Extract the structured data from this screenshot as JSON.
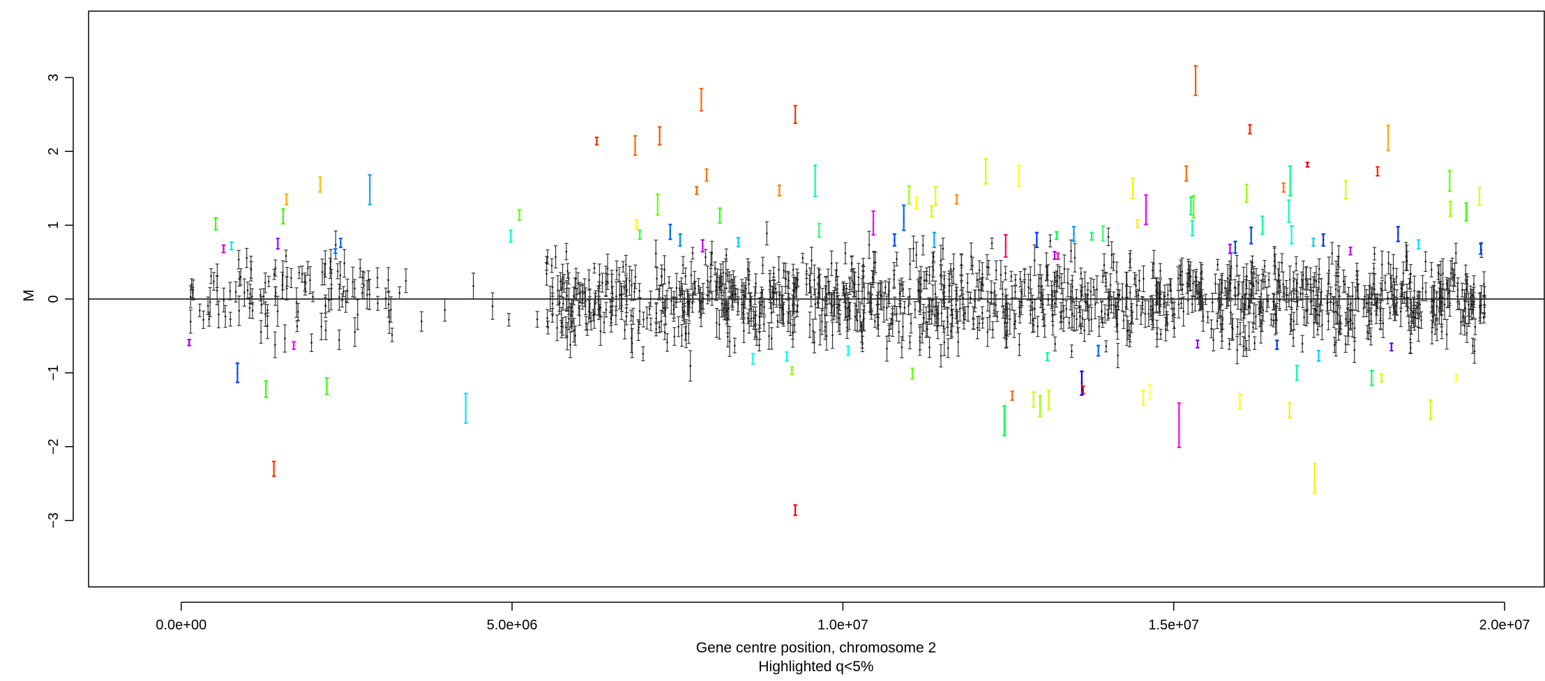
{
  "chart_data": {
    "type": "scatter",
    "title": "",
    "xlabel": "Gene centre position, chromosome 2",
    "xlabel_sub": "Highlighted q<5%",
    "ylabel": "M",
    "xlim": [
      -1400000,
      20600000
    ],
    "ylim": [
      -3.9,
      3.9
    ],
    "x_ticks": [
      0,
      5000000,
      10000000,
      15000000,
      20000000
    ],
    "x_tick_labels": [
      "0.0e+00",
      "5.0e+06",
      "1.0e+07",
      "1.5e+07",
      "2.0e+07"
    ],
    "y_ticks": [
      -3,
      -2,
      -1,
      0,
      1,
      2,
      3
    ],
    "y_tick_labels": [
      "−3",
      "−2",
      "−1",
      "0",
      "1",
      "2",
      "3"
    ],
    "reference_line_y": 0,
    "grid": false,
    "legend": "none",
    "background_points": {
      "description": "non-significant genes, estimate with error bar (black/grey)",
      "color": "#333333",
      "x_range": [
        100000,
        19700000
      ],
      "approx_count": 1300,
      "typical_halfwidth": 0.13,
      "spread_sd": 0.3
    },
    "highlighted_series": {
      "name": "Highlighted q<5%",
      "points": [
        {
          "x": 120000,
          "y": -0.59,
          "e": 0.04,
          "c": "#a000ff"
        },
        {
          "x": 520000,
          "y": 1.02,
          "e": 0.08,
          "c": "#33ff00"
        },
        {
          "x": 640000,
          "y": 0.68,
          "e": 0.05,
          "c": "#cc00ff"
        },
        {
          "x": 760000,
          "y": 0.72,
          "e": 0.05,
          "c": "#00e5ff"
        },
        {
          "x": 850000,
          "y": -1.0,
          "e": 0.13,
          "c": "#0044ff"
        },
        {
          "x": 1280000,
          "y": -1.22,
          "e": 0.11,
          "c": "#33ff00"
        },
        {
          "x": 1400000,
          "y": -2.3,
          "e": 0.1,
          "c": "#ff3300"
        },
        {
          "x": 1460000,
          "y": 0.75,
          "e": 0.07,
          "c": "#b000ff"
        },
        {
          "x": 1540000,
          "y": 1.12,
          "e": 0.1,
          "c": "#33ff00"
        },
        {
          "x": 1590000,
          "y": 1.35,
          "e": 0.07,
          "c": "#ffaa00"
        },
        {
          "x": 1700000,
          "y": -0.63,
          "e": 0.05,
          "c": "#ff00ff"
        },
        {
          "x": 2100000,
          "y": 1.55,
          "e": 0.1,
          "c": "#ffbb00"
        },
        {
          "x": 2200000,
          "y": -1.18,
          "e": 0.11,
          "c": "#33ff00"
        },
        {
          "x": 2330000,
          "y": 0.65,
          "e": 0.03,
          "c": "#0077ff"
        },
        {
          "x": 2410000,
          "y": 0.76,
          "e": 0.06,
          "c": "#0066ff"
        },
        {
          "x": 2850000,
          "y": 1.48,
          "e": 0.2,
          "c": "#00aaff"
        },
        {
          "x": 4300000,
          "y": -1.48,
          "e": 0.2,
          "c": "#00e5ff"
        },
        {
          "x": 4980000,
          "y": 0.85,
          "e": 0.08,
          "c": "#00ffcc"
        },
        {
          "x": 5110000,
          "y": 1.14,
          "e": 0.07,
          "c": "#66ff00"
        },
        {
          "x": 6280000,
          "y": 2.14,
          "e": 0.05,
          "c": "#ff2a00"
        },
        {
          "x": 6860000,
          "y": 2.08,
          "e": 0.13,
          "c": "#ff6600"
        },
        {
          "x": 6880000,
          "y": 1.01,
          "e": 0.06,
          "c": "#ffff00"
        },
        {
          "x": 6930000,
          "y": 0.87,
          "e": 0.06,
          "c": "#33ff33"
        },
        {
          "x": 7200000,
          "y": 1.28,
          "e": 0.14,
          "c": "#66ff00"
        },
        {
          "x": 7230000,
          "y": 2.21,
          "e": 0.12,
          "c": "#ff5500"
        },
        {
          "x": 7390000,
          "y": 0.91,
          "e": 0.1,
          "c": "#0066ff"
        },
        {
          "x": 7540000,
          "y": 0.8,
          "e": 0.08,
          "c": "#0088ff"
        },
        {
          "x": 7790000,
          "y": 1.47,
          "e": 0.05,
          "c": "#ff6600"
        },
        {
          "x": 7860000,
          "y": 2.7,
          "e": 0.15,
          "c": "#ff6600"
        },
        {
          "x": 7880000,
          "y": 0.72,
          "e": 0.08,
          "c": "#cc00ff"
        },
        {
          "x": 7940000,
          "y": 1.68,
          "e": 0.08,
          "c": "#ff7700"
        },
        {
          "x": 8140000,
          "y": 1.13,
          "e": 0.1,
          "c": "#33ff00"
        },
        {
          "x": 8420000,
          "y": 0.77,
          "e": 0.06,
          "c": "#00ccff"
        },
        {
          "x": 8640000,
          "y": -0.81,
          "e": 0.07,
          "c": "#00ffff"
        },
        {
          "x": 9040000,
          "y": 1.47,
          "e": 0.07,
          "c": "#ff8800"
        },
        {
          "x": 9150000,
          "y": -0.78,
          "e": 0.06,
          "c": "#00ffff"
        },
        {
          "x": 9230000,
          "y": -0.97,
          "e": 0.05,
          "c": "#88ff00"
        },
        {
          "x": 9280000,
          "y": 2.5,
          "e": 0.12,
          "c": "#ff3300"
        },
        {
          "x": 9280000,
          "y": -2.86,
          "e": 0.07,
          "c": "#ff0000"
        },
        {
          "x": 9580000,
          "y": 1.6,
          "e": 0.21,
          "c": "#00ffaa"
        },
        {
          "x": 9640000,
          "y": 0.93,
          "e": 0.09,
          "c": "#33ff66"
        },
        {
          "x": 10080000,
          "y": -0.7,
          "e": 0.06,
          "c": "#00ffff"
        },
        {
          "x": 10460000,
          "y": 1.03,
          "e": 0.16,
          "c": "#ee00ff"
        },
        {
          "x": 10780000,
          "y": 0.8,
          "e": 0.08,
          "c": "#0044ff"
        },
        {
          "x": 10920000,
          "y": 1.1,
          "e": 0.17,
          "c": "#0066ff"
        },
        {
          "x": 11000000,
          "y": 1.41,
          "e": 0.12,
          "c": "#99ff00"
        },
        {
          "x": 11050000,
          "y": -1.01,
          "e": 0.07,
          "c": "#66ff00"
        },
        {
          "x": 11110000,
          "y": 1.3,
          "e": 0.08,
          "c": "#ffff00"
        },
        {
          "x": 11340000,
          "y": 1.19,
          "e": 0.07,
          "c": "#ccff00"
        },
        {
          "x": 11380000,
          "y": 0.8,
          "e": 0.1,
          "c": "#00aaff"
        },
        {
          "x": 11400000,
          "y": 1.4,
          "e": 0.12,
          "c": "#ddff00"
        },
        {
          "x": 11720000,
          "y": 1.35,
          "e": 0.06,
          "c": "#ff8800"
        },
        {
          "x": 12160000,
          "y": 1.73,
          "e": 0.17,
          "c": "#ccff00"
        },
        {
          "x": 12440000,
          "y": -1.65,
          "e": 0.2,
          "c": "#00ff44"
        },
        {
          "x": 12460000,
          "y": 0.72,
          "e": 0.15,
          "c": "#ff0066"
        },
        {
          "x": 12560000,
          "y": -1.31,
          "e": 0.06,
          "c": "#ff6600"
        },
        {
          "x": 12660000,
          "y": 1.67,
          "e": 0.14,
          "c": "#ffff00"
        },
        {
          "x": 12880000,
          "y": -1.36,
          "e": 0.1,
          "c": "#ccff00"
        },
        {
          "x": 12930000,
          "y": 0.8,
          "e": 0.1,
          "c": "#0033ff"
        },
        {
          "x": 12980000,
          "y": -1.45,
          "e": 0.14,
          "c": "#99ff00"
        },
        {
          "x": 13090000,
          "y": -0.78,
          "e": 0.05,
          "c": "#00ff88"
        },
        {
          "x": 13110000,
          "y": -1.37,
          "e": 0.13,
          "c": "#ccff00"
        },
        {
          "x": 13200000,
          "y": 0.59,
          "e": 0.05,
          "c": "#aa00ff"
        },
        {
          "x": 13230000,
          "y": 0.86,
          "e": 0.05,
          "c": "#00ff44"
        },
        {
          "x": 13250000,
          "y": 0.58,
          "e": 0.04,
          "c": "#ff00aa"
        },
        {
          "x": 13490000,
          "y": 0.88,
          "e": 0.1,
          "c": "#0099ff"
        },
        {
          "x": 13610000,
          "y": -1.14,
          "e": 0.16,
          "c": "#0000ff"
        },
        {
          "x": 13630000,
          "y": -1.23,
          "e": 0.05,
          "c": "#ff0000"
        },
        {
          "x": 13760000,
          "y": 0.85,
          "e": 0.05,
          "c": "#00ff66"
        },
        {
          "x": 13860000,
          "y": -0.7,
          "e": 0.07,
          "c": "#0066ff"
        },
        {
          "x": 13930000,
          "y": 0.89,
          "e": 0.1,
          "c": "#33ff66"
        },
        {
          "x": 14380000,
          "y": 1.5,
          "e": 0.14,
          "c": "#ddff00"
        },
        {
          "x": 14450000,
          "y": 1.02,
          "e": 0.05,
          "c": "#ffee00"
        },
        {
          "x": 14540000,
          "y": -1.34,
          "e": 0.1,
          "c": "#ffff00"
        },
        {
          "x": 14580000,
          "y": 1.21,
          "e": 0.2,
          "c": "#ee00ff"
        },
        {
          "x": 14640000,
          "y": -1.26,
          "e": 0.1,
          "c": "#ffff66"
        },
        {
          "x": 15080000,
          "y": -1.71,
          "e": 0.3,
          "c": "#ff00dd"
        },
        {
          "x": 15190000,
          "y": 1.7,
          "e": 0.1,
          "c": "#ff6600"
        },
        {
          "x": 15260000,
          "y": 1.26,
          "e": 0.12,
          "c": "#00ff66"
        },
        {
          "x": 15280000,
          "y": 0.96,
          "e": 0.1,
          "c": "#00ffaa"
        },
        {
          "x": 15300000,
          "y": 1.25,
          "e": 0.15,
          "c": "#66ff00"
        },
        {
          "x": 15330000,
          "y": 2.96,
          "e": 0.2,
          "c": "#ff5500"
        },
        {
          "x": 15360000,
          "y": -0.61,
          "e": 0.05,
          "c": "#8800ff"
        },
        {
          "x": 15850000,
          "y": 0.68,
          "e": 0.06,
          "c": "#aa00ff"
        },
        {
          "x": 15930000,
          "y": 0.7,
          "e": 0.08,
          "c": "#0044ff"
        },
        {
          "x": 16000000,
          "y": -1.39,
          "e": 0.1,
          "c": "#ffff00"
        },
        {
          "x": 16100000,
          "y": 1.43,
          "e": 0.12,
          "c": "#99ff00"
        },
        {
          "x": 16150000,
          "y": 2.3,
          "e": 0.06,
          "c": "#ff2200"
        },
        {
          "x": 16170000,
          "y": 0.86,
          "e": 0.11,
          "c": "#0044ff"
        },
        {
          "x": 16340000,
          "y": 1.0,
          "e": 0.12,
          "c": "#00ffaa"
        },
        {
          "x": 16560000,
          "y": -0.62,
          "e": 0.06,
          "c": "#0033ff"
        },
        {
          "x": 16660000,
          "y": 1.51,
          "e": 0.06,
          "c": "#ff7700"
        },
        {
          "x": 16740000,
          "y": 1.19,
          "e": 0.15,
          "c": "#00ffcc"
        },
        {
          "x": 16750000,
          "y": -1.51,
          "e": 0.1,
          "c": "#ffee00"
        },
        {
          "x": 16760000,
          "y": 1.6,
          "e": 0.2,
          "c": "#00ff88"
        },
        {
          "x": 16780000,
          "y": 0.87,
          "e": 0.12,
          "c": "#00ffdd"
        },
        {
          "x": 16860000,
          "y": -1.0,
          "e": 0.1,
          "c": "#00ffaa"
        },
        {
          "x": 17020000,
          "y": 1.82,
          "e": 0.03,
          "c": "#ff0000"
        },
        {
          "x": 17110000,
          "y": 0.77,
          "e": 0.05,
          "c": "#00ccff"
        },
        {
          "x": 17130000,
          "y": -2.43,
          "e": 0.2,
          "c": "#ffee00"
        },
        {
          "x": 17190000,
          "y": -0.77,
          "e": 0.07,
          "c": "#00ccff"
        },
        {
          "x": 17260000,
          "y": 0.8,
          "e": 0.08,
          "c": "#0033ff"
        },
        {
          "x": 17600000,
          "y": 1.48,
          "e": 0.12,
          "c": "#ccff00"
        },
        {
          "x": 17670000,
          "y": 0.65,
          "e": 0.05,
          "c": "#cc00ff"
        },
        {
          "x": 17990000,
          "y": -1.07,
          "e": 0.1,
          "c": "#00ff66"
        },
        {
          "x": 18080000,
          "y": 1.73,
          "e": 0.06,
          "c": "#ff2200"
        },
        {
          "x": 18140000,
          "y": -1.07,
          "e": 0.05,
          "c": "#ccff00"
        },
        {
          "x": 18240000,
          "y": 2.18,
          "e": 0.17,
          "c": "#ffaa00"
        },
        {
          "x": 18290000,
          "y": -0.65,
          "e": 0.05,
          "c": "#6600ff"
        },
        {
          "x": 18390000,
          "y": 0.88,
          "e": 0.1,
          "c": "#0033ff"
        },
        {
          "x": 18700000,
          "y": 0.74,
          "e": 0.06,
          "c": "#00ddff"
        },
        {
          "x": 18880000,
          "y": -1.5,
          "e": 0.13,
          "c": "#ccff00"
        },
        {
          "x": 19170000,
          "y": 1.6,
          "e": 0.14,
          "c": "#66ff00"
        },
        {
          "x": 19180000,
          "y": 1.22,
          "e": 0.1,
          "c": "#99ff00"
        },
        {
          "x": 19270000,
          "y": -1.07,
          "e": 0.05,
          "c": "#ffff33"
        },
        {
          "x": 19420000,
          "y": 1.18,
          "e": 0.12,
          "c": "#33ff00"
        },
        {
          "x": 19620000,
          "y": 1.39,
          "e": 0.12,
          "c": "#ddff00"
        },
        {
          "x": 19640000,
          "y": 0.68,
          "e": 0.07,
          "c": "#0044ff"
        }
      ]
    }
  }
}
